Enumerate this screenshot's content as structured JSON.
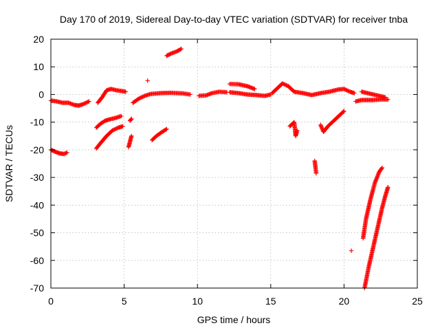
{
  "chart_data": {
    "type": "scatter",
    "title": "Day 170 of 2019, Sidereal Day-to-day VTEC variation (SDTVAR) for receiver tnba",
    "xlabel": "GPS time / hours",
    "ylabel": "SDTVAR / TECUs",
    "xlim": [
      0,
      25
    ],
    "ylim": [
      -70,
      20
    ],
    "xticks": [
      0,
      5,
      10,
      15,
      20,
      25
    ],
    "yticks": [
      -70,
      -60,
      -50,
      -40,
      -30,
      -20,
      -10,
      0,
      10,
      20
    ],
    "grid": true,
    "marker": "+",
    "color": "#ff0000",
    "segments": [
      {
        "name": "arc-1",
        "points": [
          [
            0.0,
            -2.2
          ],
          [
            0.4,
            -2.5
          ],
          [
            0.8,
            -3.0
          ],
          [
            1.2,
            -3.0
          ],
          [
            1.6,
            -3.8
          ],
          [
            1.9,
            -4.0
          ],
          [
            2.2,
            -3.5
          ],
          [
            2.6,
            -2.5
          ]
        ]
      },
      {
        "name": "arc-2",
        "points": [
          [
            0.0,
            -20.0
          ],
          [
            0.3,
            -20.7
          ],
          [
            0.6,
            -21.3
          ],
          [
            0.9,
            -21.5
          ],
          [
            1.1,
            -21.0
          ]
        ]
      },
      {
        "name": "arc-3",
        "points": [
          [
            3.1,
            -12.0
          ],
          [
            3.4,
            -10.5
          ],
          [
            3.7,
            -9.5
          ],
          [
            4.0,
            -9.0
          ],
          [
            4.4,
            -8.5
          ],
          [
            4.8,
            -7.8
          ]
        ]
      },
      {
        "name": "arc-4",
        "points": [
          [
            3.1,
            -19.5
          ],
          [
            3.4,
            -17.5
          ],
          [
            3.8,
            -15.0
          ],
          [
            4.2,
            -13.0
          ],
          [
            4.6,
            -12.0
          ],
          [
            4.9,
            -11.5
          ]
        ]
      },
      {
        "name": "arc-5",
        "points": [
          [
            3.2,
            -3.0
          ],
          [
            3.5,
            -1.0
          ],
          [
            3.8,
            1.5
          ],
          [
            4.1,
            2.0
          ],
          [
            4.5,
            1.5
          ],
          [
            4.9,
            1.2
          ],
          [
            5.1,
            1.0
          ]
        ]
      },
      {
        "name": "arc-6",
        "points": [
          [
            5.3,
            -19.0
          ],
          [
            5.4,
            -17.0
          ],
          [
            5.5,
            -15.0
          ]
        ]
      },
      {
        "name": "arc-7",
        "points": [
          [
            5.4,
            -9.5
          ],
          [
            5.5,
            -8.8
          ]
        ]
      },
      {
        "name": "arc-8",
        "points": [
          [
            5.6,
            -3.0
          ],
          [
            6.0,
            -1.5
          ],
          [
            6.4,
            -0.5
          ],
          [
            6.8,
            0.2
          ],
          [
            7.5,
            0.5
          ],
          [
            8.2,
            0.6
          ],
          [
            9.0,
            0.4
          ],
          [
            9.5,
            0.0
          ]
        ]
      },
      {
        "name": "arc-9",
        "points": [
          [
            6.6,
            5.0
          ]
        ]
      },
      {
        "name": "arc-10",
        "points": [
          [
            6.9,
            -16.5
          ],
          [
            7.2,
            -15.0
          ],
          [
            7.6,
            -13.5
          ],
          [
            7.9,
            -12.5
          ]
        ]
      },
      {
        "name": "arc-11",
        "points": [
          [
            7.9,
            14.0
          ],
          [
            8.2,
            14.8
          ],
          [
            8.6,
            15.6
          ],
          [
            8.9,
            16.5
          ]
        ]
      },
      {
        "name": "arc-12",
        "points": [
          [
            10.1,
            -0.5
          ],
          [
            10.6,
            -0.3
          ],
          [
            11.0,
            0.5
          ],
          [
            11.5,
            1.0
          ],
          [
            12.0,
            0.8
          ]
        ]
      },
      {
        "name": "arc-13",
        "points": [
          [
            12.2,
            3.8
          ],
          [
            12.8,
            3.7
          ],
          [
            13.4,
            3.0
          ],
          [
            13.9,
            2.0
          ]
        ]
      },
      {
        "name": "arc-14",
        "points": [
          [
            12.2,
            0.8
          ],
          [
            12.8,
            0.5
          ],
          [
            13.4,
            0.0
          ],
          [
            14.0,
            -0.2
          ],
          [
            14.6,
            -0.5
          ],
          [
            15.0,
            0.0
          ]
        ]
      },
      {
        "name": "arc-15",
        "points": [
          [
            15.1,
            0.5
          ],
          [
            15.5,
            2.5
          ],
          [
            15.8,
            4.0
          ],
          [
            16.2,
            3.0
          ],
          [
            16.6,
            1.0
          ],
          [
            17.2,
            0.5
          ],
          [
            17.8,
            -0.2
          ],
          [
            18.4,
            0.5
          ],
          [
            19.0,
            1.0
          ],
          [
            19.6,
            1.8
          ],
          [
            20.0,
            2.0
          ],
          [
            20.4,
            1.0
          ],
          [
            20.7,
            0.5
          ]
        ]
      },
      {
        "name": "arc-16",
        "points": [
          [
            16.3,
            -11.5
          ],
          [
            16.6,
            -10.0
          ],
          [
            16.7,
            -15.0
          ],
          [
            16.8,
            -13.0
          ]
        ]
      },
      {
        "name": "arc-17",
        "points": [
          [
            18.0,
            -24.0
          ],
          [
            18.1,
            -28.5
          ]
        ]
      },
      {
        "name": "arc-18",
        "points": [
          [
            18.4,
            -11.0
          ],
          [
            18.6,
            -13.5
          ],
          [
            18.9,
            -11.5
          ],
          [
            19.2,
            -10.0
          ],
          [
            19.5,
            -8.5
          ],
          [
            19.8,
            -7.0
          ],
          [
            20.0,
            -6.0
          ]
        ]
      },
      {
        "name": "arc-19",
        "points": [
          [
            20.5,
            -56.5
          ]
        ]
      },
      {
        "name": "arc-20",
        "points": [
          [
            20.8,
            -2.5
          ],
          [
            21.2,
            -2.0
          ],
          [
            21.6,
            -2.0
          ],
          [
            22.0,
            -2.0
          ],
          [
            22.5,
            -1.8
          ],
          [
            23.0,
            -1.8
          ]
        ]
      },
      {
        "name": "arc-21",
        "points": [
          [
            21.2,
            1.0
          ],
          [
            21.6,
            0.5
          ],
          [
            22.0,
            0.0
          ],
          [
            22.4,
            -0.5
          ],
          [
            22.8,
            -1.0
          ]
        ]
      },
      {
        "name": "arc-22",
        "points": [
          [
            21.3,
            -52.0
          ],
          [
            21.5,
            -45.0
          ],
          [
            21.8,
            -38.0
          ],
          [
            22.1,
            -32.0
          ],
          [
            22.4,
            -28.0
          ],
          [
            22.6,
            -26.5
          ]
        ]
      },
      {
        "name": "arc-23",
        "points": [
          [
            21.4,
            -70.0
          ],
          [
            21.7,
            -62.0
          ],
          [
            22.0,
            -55.0
          ],
          [
            22.3,
            -48.0
          ],
          [
            22.6,
            -41.0
          ],
          [
            22.8,
            -37.0
          ],
          [
            23.0,
            -33.5
          ]
        ]
      }
    ]
  }
}
